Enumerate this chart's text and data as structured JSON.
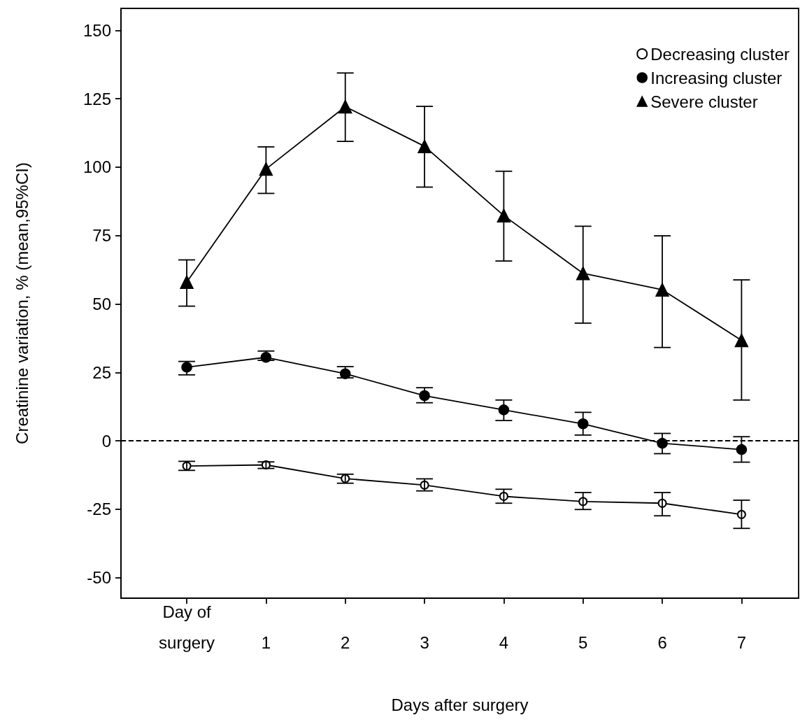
{
  "chart_data": {
    "type": "line",
    "xlabel": "Days after surgery",
    "ylabel": "Creatinine variation, % (mean,95%CI)",
    "x": [
      0,
      1,
      2,
      3,
      4,
      5,
      6,
      7
    ],
    "xlim": [
      -0.83,
      7.72
    ],
    "xticks": [
      {
        "value": 0,
        "label": "Day of\nsurgery"
      },
      1,
      2,
      3,
      4,
      5,
      6,
      7
    ],
    "ylim": [
      -57.5,
      158
    ],
    "yticks": [
      -50,
      -25,
      0,
      25,
      50,
      75,
      100,
      125,
      150
    ],
    "grid": false,
    "legend": "top right",
    "line_style": "solid",
    "ref_lines": [
      {
        "axis": "y",
        "value": 0,
        "line_style": "dashed",
        "color": "#000000"
      }
    ],
    "series": [
      {
        "name": "Decreasing cluster",
        "color": "#000000",
        "marker": "circle-open",
        "values": [
          -9.2,
          -8.8,
          -13.8,
          -16.2,
          -20.3,
          -22.2,
          -22.8,
          -26.9
        ],
        "errors": [
          [
            -10.8,
            -7.5
          ],
          [
            -10.1,
            -7.7
          ],
          [
            -15.5,
            -12.2
          ],
          [
            -18.3,
            -13.9
          ],
          [
            -22.8,
            -17.7
          ],
          [
            -25.1,
            -18.9
          ],
          [
            -27.4,
            -18.9
          ],
          [
            -32,
            -21.7
          ]
        ]
      },
      {
        "name": "Increasing cluster",
        "color": "#000000",
        "marker": "circle",
        "values": [
          26.9,
          30.5,
          24.5,
          16.5,
          11.3,
          6.2,
          -0.9,
          -3.2
        ],
        "errors": [
          [
            24.1,
            29
          ],
          [
            29.4,
            32.8
          ],
          [
            23,
            27.1
          ],
          [
            13.9,
            19.4
          ],
          [
            7.4,
            14.9
          ],
          [
            2.1,
            10.4
          ],
          [
            -4.7,
            2.7
          ],
          [
            -7.8,
            1.5
          ]
        ]
      },
      {
        "name": "Severe cluster",
        "color": "#000000",
        "marker": "triangle",
        "values": [
          58,
          99.3,
          122.1,
          107.6,
          82.3,
          61.2,
          55.2,
          36.7
        ],
        "errors": [
          [
            49.2,
            66.1
          ],
          [
            90.4,
            107.4
          ],
          [
            109.4,
            134.4
          ],
          [
            92.7,
            122.2
          ],
          [
            65.7,
            98.5
          ],
          [
            43,
            78.4
          ],
          [
            34.1,
            74.9
          ],
          [
            14.9,
            58.8
          ]
        ]
      }
    ]
  }
}
